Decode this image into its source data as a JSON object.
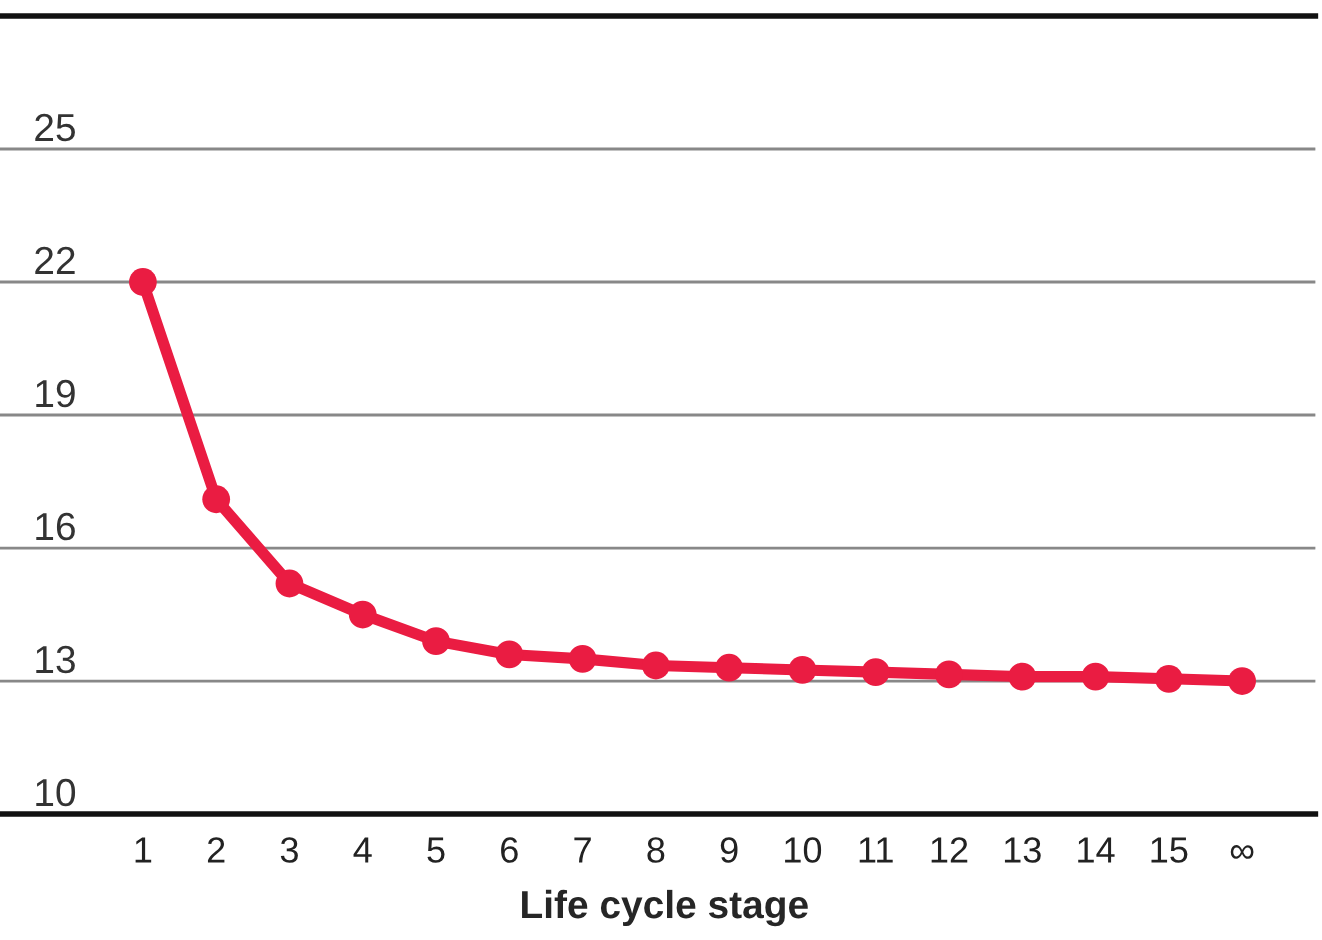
{
  "chart_data": {
    "type": "line",
    "xlabel": "Life cycle stage",
    "categories": [
      "1",
      "2",
      "3",
      "4",
      "5",
      "6",
      "7",
      "8",
      "9",
      "10",
      "11",
      "12",
      "13",
      "14",
      "15",
      "∞"
    ],
    "series": [
      {
        "color": "#ea1c42",
        "values": [
          22,
          17.1,
          15.2,
          14.5,
          13.9,
          13.6,
          13.5,
          13.35,
          13.3,
          13.25,
          13.2,
          13.15,
          13.1,
          13.1,
          13.05,
          13.0
        ]
      }
    ],
    "ylim": [
      10,
      28
    ],
    "yticks": [
      10,
      13,
      16,
      19,
      22,
      25
    ],
    "grid": "y",
    "marker": "circle",
    "line_style": "solid",
    "legend": false
  }
}
